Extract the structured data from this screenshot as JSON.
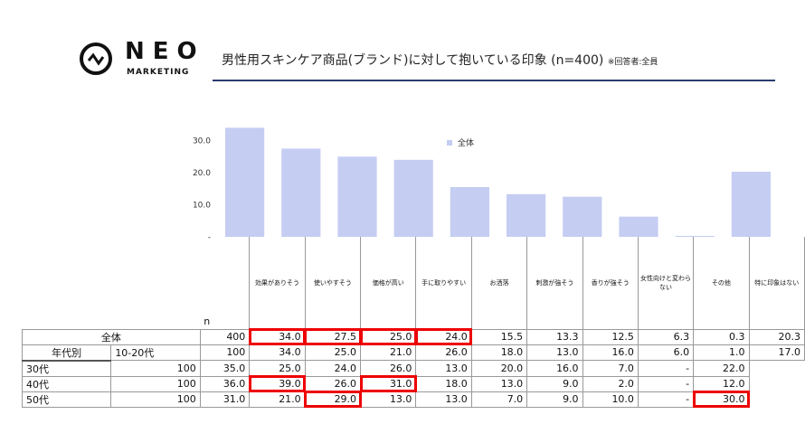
{
  "logo": {
    "name": "NEO",
    "sub": "MARKETING"
  },
  "title": "男性用スキンケア商品(ブランド)に対して抱いている印象 (n=400)",
  "note": "※回答者:全員",
  "chart_data": {
    "type": "bar",
    "title": "男性用スキンケア商品(ブランド)に対して抱いている印象 (n=400)",
    "legend": [
      "全体"
    ],
    "legend_position": "top-right",
    "categories": [
      "効果がありそう",
      "使いやすそう",
      "価格が高い",
      "手に取りやすい",
      "お洒落",
      "刺激が強そう",
      "香りが強そう",
      "女性向けと変わらない",
      "その他",
      "特に印象はない"
    ],
    "values": [
      34.0,
      27.5,
      25.0,
      24.0,
      15.5,
      13.3,
      12.5,
      6.3,
      0.3,
      20.3
    ],
    "yticks": [
      "-",
      "10.0",
      "20.0",
      "30.0"
    ],
    "ylim": [
      0,
      35
    ],
    "color": "#c5cdf2"
  },
  "table": {
    "n_label": "n",
    "group_label": "年代別",
    "rows": [
      {
        "label": "全体",
        "n": "400",
        "values": [
          "34.0",
          "27.5",
          "25.0",
          "24.0",
          "15.5",
          "13.3",
          "12.5",
          "6.3",
          "0.3",
          "20.3"
        ],
        "hl": [
          0,
          1,
          2,
          3
        ]
      },
      {
        "label": "10-20代",
        "n": "100",
        "values": [
          "34.0",
          "25.0",
          "21.0",
          "26.0",
          "18.0",
          "13.0",
          "16.0",
          "6.0",
          "1.0",
          "17.0"
        ],
        "hl": []
      },
      {
        "label": "30代",
        "n": "100",
        "values": [
          "35.0",
          "25.0",
          "24.0",
          "26.0",
          "13.0",
          "20.0",
          "16.0",
          "7.0",
          "-",
          "22.0"
        ],
        "hl": []
      },
      {
        "label": "40代",
        "n": "100",
        "values": [
          "36.0",
          "39.0",
          "26.0",
          "31.0",
          "18.0",
          "13.0",
          "9.0",
          "2.0",
          "-",
          "12.0"
        ],
        "hl": [
          1,
          3
        ]
      },
      {
        "label": "50代",
        "n": "100",
        "values": [
          "31.0",
          "21.0",
          "29.0",
          "13.0",
          "13.0",
          "7.0",
          "9.0",
          "10.0",
          "-",
          "30.0"
        ],
        "hl": [
          2,
          9
        ]
      }
    ]
  }
}
